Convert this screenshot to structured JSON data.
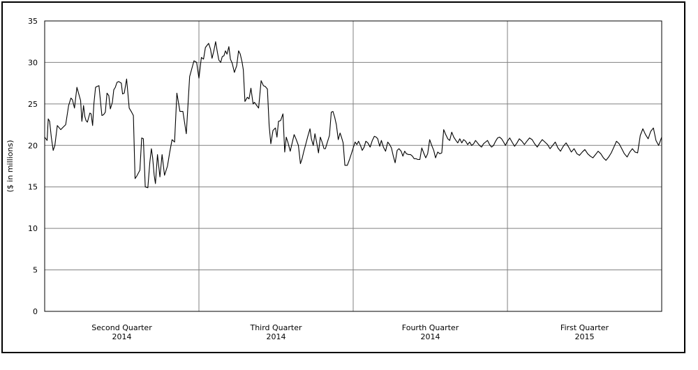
{
  "chart_data": {
    "type": "line",
    "title": "",
    "xlabel": "",
    "ylabel": "($ in millions)",
    "ylim": [
      0,
      35
    ],
    "y_ticks": [
      0,
      5,
      10,
      15,
      20,
      25,
      30,
      35
    ],
    "grid": true,
    "legend": "none",
    "line_color": "#000000",
    "grid_color": "#808080",
    "x_periods": [
      {
        "line1": "Second Quarter",
        "line2": "2014"
      },
      {
        "line1": "Third Quarter",
        "line2": "2014"
      },
      {
        "line1": "Fourth Quarter",
        "line2": "2014"
      },
      {
        "line1": "First Quarter",
        "line2": "2015"
      }
    ],
    "x_range": [
      0,
      4
    ],
    "series": [
      {
        "x": [
          0.0,
          0.016,
          0.023,
          0.032,
          0.043,
          0.055,
          0.066,
          0.082,
          0.104,
          0.12,
          0.136,
          0.155,
          0.17,
          0.18,
          0.193,
          0.209,
          0.233,
          0.241,
          0.252,
          0.26,
          0.268,
          0.277,
          0.293,
          0.301,
          0.311,
          0.319,
          0.33,
          0.339,
          0.352,
          0.363,
          0.371,
          0.382,
          0.393,
          0.404,
          0.416,
          0.426,
          0.439,
          0.448,
          0.458,
          0.469,
          0.48,
          0.497,
          0.505,
          0.516,
          0.531,
          0.548,
          0.564,
          0.575,
          0.586,
          0.597,
          0.617,
          0.629,
          0.64,
          0.652,
          0.669,
          0.682,
          0.692,
          0.7,
          0.71,
          0.718,
          0.731,
          0.747,
          0.761,
          0.777,
          0.796,
          0.81,
          0.826,
          0.842,
          0.857,
          0.877,
          0.896,
          0.918,
          0.94,
          0.968,
          0.985,
          1.0,
          1.016,
          1.03,
          1.042,
          1.063,
          1.075,
          1.085,
          1.097,
          1.108,
          1.12,
          1.129,
          1.141,
          1.151,
          1.162,
          1.172,
          1.182,
          1.194,
          1.204,
          1.216,
          1.23,
          1.245,
          1.257,
          1.268,
          1.28,
          1.288,
          1.298,
          1.314,
          1.325,
          1.337,
          1.351,
          1.36,
          1.371,
          1.387,
          1.403,
          1.418,
          1.43,
          1.444,
          1.455,
          1.466,
          1.48,
          1.496,
          1.506,
          1.516,
          1.53,
          1.545,
          1.556,
          1.566,
          1.578,
          1.592,
          1.606,
          1.617,
          1.629,
          1.645,
          1.658,
          1.669,
          1.68,
          1.692,
          1.706,
          1.72,
          1.729,
          1.741,
          1.752,
          1.764,
          1.775,
          1.787,
          1.798,
          1.811,
          1.82,
          1.831,
          1.846,
          1.858,
          1.869,
          1.88,
          1.891,
          1.903,
          1.915,
          1.924,
          1.935,
          1.946,
          1.962,
          1.976,
          1.99,
          2.0,
          2.012,
          2.024,
          2.035,
          2.047,
          2.059,
          2.071,
          2.082,
          2.095,
          2.11,
          2.124,
          2.137,
          2.149,
          2.159,
          2.172,
          2.183,
          2.196,
          2.21,
          2.224,
          2.236,
          2.248,
          2.26,
          2.272,
          2.285,
          2.297,
          2.311,
          2.322,
          2.334,
          2.345,
          2.359,
          2.372,
          2.384,
          2.395,
          2.407,
          2.419,
          2.432,
          2.445,
          2.457,
          2.47,
          2.483,
          2.496,
          2.509,
          2.522,
          2.534,
          2.548,
          2.561,
          2.574,
          2.587,
          2.6,
          2.613,
          2.626,
          2.639,
          2.652,
          2.666,
          2.678,
          2.691,
          2.704,
          2.716,
          2.729,
          2.742,
          2.755,
          2.768,
          2.781,
          2.793,
          2.806,
          2.819,
          2.832,
          2.845,
          2.858,
          2.871,
          2.884,
          2.897,
          2.91,
          2.923,
          2.936,
          2.949,
          2.962,
          2.975,
          2.987,
          3.0,
          3.015,
          3.03,
          3.046,
          3.062,
          3.077,
          3.094,
          3.11,
          3.126,
          3.143,
          3.16,
          3.176,
          3.193,
          3.21,
          3.226,
          3.243,
          3.26,
          3.276,
          3.293,
          3.31,
          3.327,
          3.344,
          3.362,
          3.38,
          3.397,
          3.414,
          3.432,
          3.45,
          3.467,
          3.485,
          3.502,
          3.52,
          3.537,
          3.554,
          3.571,
          3.588,
          3.605,
          3.622,
          3.639,
          3.656,
          3.673,
          3.69,
          3.707,
          3.724,
          3.741,
          3.758,
          3.776,
          3.793,
          3.81,
          3.827,
          3.844,
          3.861,
          3.878,
          3.895,
          3.912,
          3.929,
          3.946,
          3.963,
          3.98,
          4.0
        ],
        "values": [
          21.0,
          20.6,
          23.2,
          22.9,
          21.0,
          19.4,
          20.0,
          22.4,
          21.9,
          22.2,
          22.5,
          24.8,
          25.7,
          25.5,
          24.5,
          27.0,
          25.4,
          22.9,
          24.8,
          23.5,
          23.0,
          22.8,
          23.9,
          23.8,
          22.4,
          25.0,
          27.0,
          27.1,
          27.2,
          25.1,
          23.6,
          23.7,
          24.0,
          26.3,
          26.0,
          24.4,
          25.2,
          26.7,
          27.0,
          27.6,
          27.7,
          27.5,
          26.2,
          26.3,
          28.0,
          24.5,
          24.0,
          23.6,
          16.0,
          16.3,
          17.0,
          20.9,
          20.8,
          15.0,
          14.9,
          18.0,
          19.6,
          18.5,
          16.4,
          15.4,
          18.9,
          16.2,
          18.9,
          16.4,
          17.5,
          19.1,
          20.7,
          20.4,
          26.3,
          24.1,
          24.1,
          21.4,
          28.3,
          30.2,
          30.0,
          28.1,
          30.6,
          30.4,
          31.8,
          32.3,
          31.6,
          30.5,
          31.4,
          32.5,
          31.2,
          30.3,
          30.0,
          30.7,
          30.8,
          31.4,
          31.0,
          31.9,
          30.4,
          29.9,
          28.8,
          29.6,
          31.4,
          31.0,
          30.0,
          29.1,
          25.3,
          25.8,
          25.6,
          26.9,
          25.0,
          25.2,
          24.9,
          24.5,
          27.8,
          27.2,
          27.1,
          26.8,
          22.4,
          20.2,
          21.8,
          22.1,
          21.0,
          22.9,
          23.0,
          23.8,
          19.2,
          21.0,
          20.3,
          19.3,
          20.4,
          21.3,
          20.8,
          20.0,
          17.8,
          18.4,
          19.3,
          20.1,
          21.1,
          22.0,
          20.8,
          20.0,
          21.4,
          20.3,
          19.1,
          21.0,
          20.4,
          19.6,
          19.6,
          20.3,
          21.2,
          24.0,
          24.1,
          23.4,
          22.5,
          20.7,
          21.5,
          21.0,
          20.3,
          17.6,
          17.6,
          18.3,
          19.1,
          19.7,
          20.4,
          20.1,
          20.5,
          20.0,
          19.4,
          19.8,
          20.5,
          20.3,
          19.8,
          20.6,
          21.1,
          21.0,
          20.8,
          19.9,
          20.6,
          19.8,
          19.3,
          20.4,
          20.1,
          19.7,
          18.7,
          17.9,
          19.4,
          19.6,
          19.3,
          18.7,
          19.3,
          19.0,
          18.9,
          18.9,
          18.7,
          18.4,
          18.4,
          18.3,
          18.3,
          19.7,
          19.1,
          18.5,
          19.0,
          20.7,
          20.0,
          19.4,
          18.5,
          19.2,
          19.0,
          19.1,
          21.9,
          21.3,
          20.8,
          20.6,
          21.6,
          21.0,
          20.6,
          20.3,
          20.8,
          20.3,
          20.7,
          20.5,
          20.1,
          20.4,
          20.0,
          20.2,
          20.6,
          20.3,
          20.0,
          19.8,
          20.2,
          20.4,
          20.6,
          20.1,
          19.8,
          20.0,
          20.5,
          20.9,
          21.0,
          20.8,
          20.4,
          20.0,
          20.5,
          20.9,
          20.4,
          19.9,
          20.3,
          20.8,
          20.5,
          20.1,
          20.5,
          20.9,
          20.7,
          20.2,
          19.8,
          20.3,
          20.7,
          20.4,
          20.1,
          19.6,
          20.0,
          20.4,
          19.7,
          19.3,
          19.9,
          20.3,
          19.8,
          19.2,
          19.6,
          19.0,
          18.8,
          19.2,
          19.5,
          19.0,
          18.7,
          18.5,
          18.9,
          19.3,
          19.0,
          18.5,
          18.2,
          18.6,
          19.1,
          19.8,
          20.5,
          20.2,
          19.6,
          19.0,
          18.6,
          19.2,
          19.6,
          19.2,
          19.1,
          21.2,
          22.0,
          21.3,
          20.8,
          21.7,
          22.1,
          20.6,
          20.0,
          21.0
        ]
      }
    ]
  }
}
